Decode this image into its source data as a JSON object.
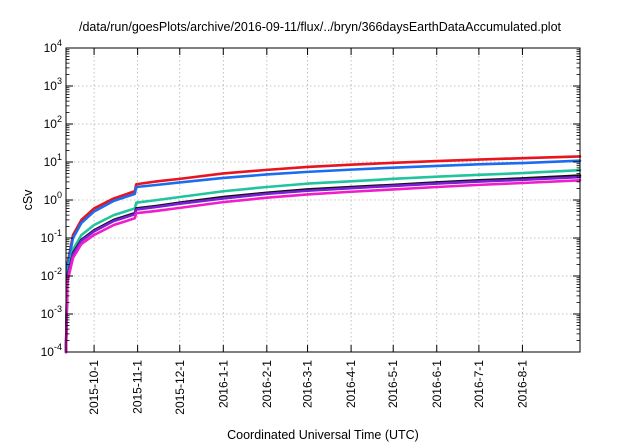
{
  "chart_data": {
    "type": "line",
    "title": "/data/run/goesPlots/archive/2016-09-11/flux/../bryn/366daysEarthDataAccumulated.plot",
    "xlabel": "Coordinated Universal Time (UTC)",
    "ylabel": "cSv",
    "y_scale": "log",
    "ylim": [
      0.0001,
      10000
    ],
    "xlim": [
      "2015-09-11",
      "2016-09-11"
    ],
    "grid": true,
    "legend": "none",
    "x_ticks": [
      "2015-10-1",
      "2015-11-1",
      "2015-12-1",
      "2016-1-1",
      "2016-2-1",
      "2016-3-1",
      "2016-4-1",
      "2016-5-1",
      "2016-6-1",
      "2016-7-1",
      "2016-8-1"
    ],
    "y_ticks": [
      {
        "value": 0.0001,
        "base": "10",
        "exp": "-4"
      },
      {
        "value": 0.001,
        "base": "10",
        "exp": "-3"
      },
      {
        "value": 0.01,
        "base": "10",
        "exp": "-2"
      },
      {
        "value": 0.1,
        "base": "10",
        "exp": "-1"
      },
      {
        "value": 1,
        "base": "10",
        "exp": "0"
      },
      {
        "value": 10,
        "base": "10",
        "exp": "1"
      },
      {
        "value": 100,
        "base": "10",
        "exp": "2"
      },
      {
        "value": 1000,
        "base": "10",
        "exp": "3"
      },
      {
        "value": 10000,
        "base": "10",
        "exp": "4"
      }
    ],
    "series": [
      {
        "color": "#e8141e",
        "points": [
          [
            "2015-09-11",
            0.0001
          ],
          [
            "2015-09-12",
            0.02
          ],
          [
            "2015-09-16",
            0.12
          ],
          [
            "2015-09-22",
            0.3
          ],
          [
            "2015-10-01",
            0.6
          ],
          [
            "2015-10-15",
            1.1
          ],
          [
            "2015-10-30",
            1.7
          ],
          [
            "2015-10-31",
            2.6
          ],
          [
            "2015-11-15",
            3.1
          ],
          [
            "2015-12-01",
            3.6
          ],
          [
            "2016-01-01",
            5.0
          ],
          [
            "2016-02-01",
            6.2
          ],
          [
            "2016-03-01",
            7.4
          ],
          [
            "2016-04-01",
            8.5
          ],
          [
            "2016-05-01",
            9.5
          ],
          [
            "2016-06-01",
            10.6
          ],
          [
            "2016-07-01",
            11.6
          ],
          [
            "2016-08-01",
            12.6
          ],
          [
            "2016-09-11",
            14.0
          ]
        ]
      },
      {
        "color": "#1a6cf0",
        "points": [
          [
            "2015-09-11",
            0.0001
          ],
          [
            "2015-09-12",
            0.018
          ],
          [
            "2015-09-16",
            0.1
          ],
          [
            "2015-09-22",
            0.25
          ],
          [
            "2015-10-01",
            0.5
          ],
          [
            "2015-10-15",
            0.95
          ],
          [
            "2015-10-30",
            1.45
          ],
          [
            "2015-10-31",
            2.2
          ],
          [
            "2015-11-15",
            2.5
          ],
          [
            "2015-12-01",
            2.9
          ],
          [
            "2016-01-01",
            3.8
          ],
          [
            "2016-02-01",
            4.7
          ],
          [
            "2016-03-01",
            5.5
          ],
          [
            "2016-04-01",
            6.3
          ],
          [
            "2016-05-01",
            7.1
          ],
          [
            "2016-06-01",
            7.9
          ],
          [
            "2016-07-01",
            8.7
          ],
          [
            "2016-08-01",
            9.4
          ],
          [
            "2016-09-11",
            10.8
          ]
        ]
      },
      {
        "color": "#22c4a0",
        "points": [
          [
            "2015-09-11",
            0.0001
          ],
          [
            "2015-09-12",
            0.012
          ],
          [
            "2015-09-16",
            0.05
          ],
          [
            "2015-09-22",
            0.12
          ],
          [
            "2015-10-01",
            0.22
          ],
          [
            "2015-10-15",
            0.4
          ],
          [
            "2015-10-30",
            0.6
          ],
          [
            "2015-10-31",
            0.85
          ],
          [
            "2015-11-15",
            1.0
          ],
          [
            "2015-12-01",
            1.2
          ],
          [
            "2016-01-01",
            1.7
          ],
          [
            "2016-02-01",
            2.2
          ],
          [
            "2016-03-01",
            2.7
          ],
          [
            "2016-04-01",
            3.1
          ],
          [
            "2016-05-01",
            3.6
          ],
          [
            "2016-06-01",
            4.1
          ],
          [
            "2016-07-01",
            4.6
          ],
          [
            "2016-08-01",
            5.1
          ],
          [
            "2016-09-11",
            6.1
          ]
        ]
      },
      {
        "color": "#111111",
        "points": [
          [
            "2015-09-11",
            0.0001
          ],
          [
            "2015-09-12",
            0.01
          ],
          [
            "2015-09-16",
            0.04
          ],
          [
            "2015-09-22",
            0.09
          ],
          [
            "2015-10-01",
            0.16
          ],
          [
            "2015-10-15",
            0.3
          ],
          [
            "2015-10-30",
            0.45
          ],
          [
            "2015-10-31",
            0.6
          ],
          [
            "2015-11-15",
            0.7
          ],
          [
            "2015-12-01",
            0.85
          ],
          [
            "2016-01-01",
            1.2
          ],
          [
            "2016-02-01",
            1.55
          ],
          [
            "2016-03-01",
            1.9
          ],
          [
            "2016-04-01",
            2.2
          ],
          [
            "2016-05-01",
            2.5
          ],
          [
            "2016-06-01",
            2.9
          ],
          [
            "2016-07-01",
            3.3
          ],
          [
            "2016-08-01",
            3.7
          ],
          [
            "2016-09-11",
            4.4
          ]
        ]
      },
      {
        "color": "#7a1fd6",
        "points": [
          [
            "2015-09-11",
            0.0001
          ],
          [
            "2015-09-12",
            0.009
          ],
          [
            "2015-09-16",
            0.037
          ],
          [
            "2015-09-22",
            0.085
          ],
          [
            "2015-10-01",
            0.15
          ],
          [
            "2015-10-15",
            0.28
          ],
          [
            "2015-10-30",
            0.42
          ],
          [
            "2015-10-31",
            0.56
          ],
          [
            "2015-11-15",
            0.66
          ],
          [
            "2015-12-01",
            0.8
          ],
          [
            "2016-01-01",
            1.1
          ],
          [
            "2016-02-01",
            1.45
          ],
          [
            "2016-03-01",
            1.75
          ],
          [
            "2016-04-01",
            2.05
          ],
          [
            "2016-05-01",
            2.35
          ],
          [
            "2016-06-01",
            2.7
          ],
          [
            "2016-07-01",
            3.05
          ],
          [
            "2016-08-01",
            3.4
          ],
          [
            "2016-09-11",
            4.0
          ]
        ]
      },
      {
        "color": "#f01ec8",
        "points": [
          [
            "2015-09-11",
            0.0001
          ],
          [
            "2015-09-12",
            0.007
          ],
          [
            "2015-09-16",
            0.03
          ],
          [
            "2015-09-22",
            0.07
          ],
          [
            "2015-10-01",
            0.12
          ],
          [
            "2015-10-15",
            0.22
          ],
          [
            "2015-10-30",
            0.33
          ],
          [
            "2015-10-31",
            0.45
          ],
          [
            "2015-11-15",
            0.52
          ],
          [
            "2015-12-01",
            0.62
          ],
          [
            "2016-01-01",
            0.88
          ],
          [
            "2016-02-01",
            1.15
          ],
          [
            "2016-03-01",
            1.4
          ],
          [
            "2016-04-01",
            1.65
          ],
          [
            "2016-05-01",
            1.9
          ],
          [
            "2016-06-01",
            2.2
          ],
          [
            "2016-07-01",
            2.5
          ],
          [
            "2016-08-01",
            2.8
          ],
          [
            "2016-09-11",
            3.3
          ]
        ]
      }
    ]
  }
}
